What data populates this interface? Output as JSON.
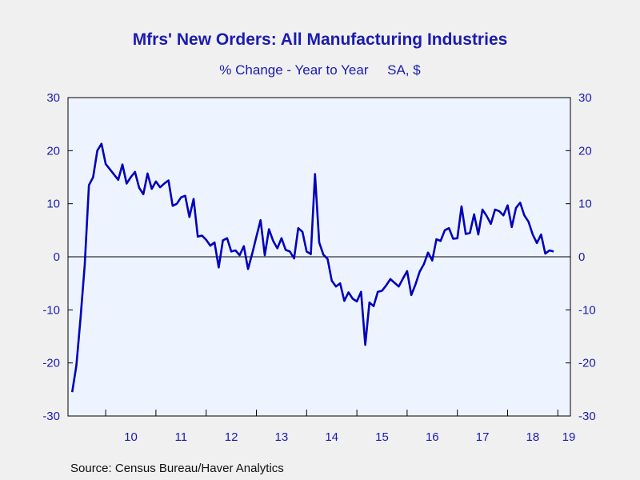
{
  "title": "Mfrs' New Orders: All Manufacturing Industries",
  "subtitle": "% Change - Year to Year     SA, $",
  "source": "Source:  Census Bureau/Haver Analytics",
  "colors": {
    "background": "#f0f0f0",
    "plot_background": "#eef4ff",
    "line": "#0000bb",
    "text": "#1b1bb0"
  },
  "chart_data": {
    "type": "line",
    "title": "Mfrs' New Orders: All Manufacturing Industries",
    "subtitle": "% Change - Year to Year     SA, $",
    "ylabel": "",
    "xlabel": "",
    "ylim": [
      -30,
      30
    ],
    "yticks": [
      -30,
      -20,
      -10,
      0,
      10,
      20,
      30
    ],
    "xlim": [
      2009.25,
      2019.25
    ],
    "xtick_labels": [
      {
        "x": 2010,
        "label": "10"
      },
      {
        "x": 2011,
        "label": "11"
      },
      {
        "x": 2012,
        "label": "12"
      },
      {
        "x": 2013,
        "label": "13"
      },
      {
        "x": 2014,
        "label": "14"
      },
      {
        "x": 2015,
        "label": "15"
      },
      {
        "x": 2016,
        "label": "16"
      },
      {
        "x": 2017,
        "label": "17"
      },
      {
        "x": 2018,
        "label": "18"
      },
      {
        "x": 2019,
        "label": "19"
      }
    ],
    "dual_y_axis": true,
    "zero_line": true,
    "grid": false,
    "series": [
      {
        "name": "",
        "start": "2009-05",
        "frequency": "monthly",
        "values": [
          -25.5,
          -20.5,
          -11.5,
          -1.5,
          13.5,
          15.0,
          20.0,
          21.3,
          17.5,
          16.5,
          15.5,
          14.5,
          17.4,
          13.8,
          15.0,
          16.0,
          13.0,
          11.8,
          15.7,
          12.8,
          14.2,
          13.1,
          13.8,
          14.4,
          9.6,
          10.0,
          11.2,
          11.5,
          7.5,
          10.9,
          3.8,
          4.0,
          3.2,
          2.1,
          2.7,
          -2.0,
          3.1,
          3.5,
          1.0,
          1.2,
          0.3,
          2.0,
          -2.3,
          0.6,
          3.8,
          6.9,
          0.3,
          5.2,
          3.0,
          1.6,
          3.5,
          1.3,
          1.0,
          -0.3,
          5.4,
          4.7,
          1.0,
          0.5,
          15.6,
          2.7,
          0.4,
          -0.4,
          -4.5,
          -5.6,
          -5.0,
          -8.3,
          -6.7,
          -7.9,
          -8.4,
          -6.6,
          -16.6,
          -8.6,
          -9.3,
          -6.6,
          -6.4,
          -5.4,
          -4.2,
          -4.9,
          -5.6,
          -4.1,
          -2.7,
          -7.2,
          -5.2,
          -2.8,
          -1.4,
          0.8,
          -0.7,
          3.3,
          3.0,
          5.0,
          5.4,
          3.4,
          3.5,
          9.5,
          4.3,
          4.5,
          8.0,
          4.2,
          8.9,
          7.7,
          6.2,
          8.9,
          8.6,
          7.8,
          9.7,
          5.6,
          9.2,
          10.2,
          7.8,
          6.6,
          4.2,
          2.6,
          4.2,
          0.6,
          1.2,
          1.0
        ]
      }
    ]
  }
}
